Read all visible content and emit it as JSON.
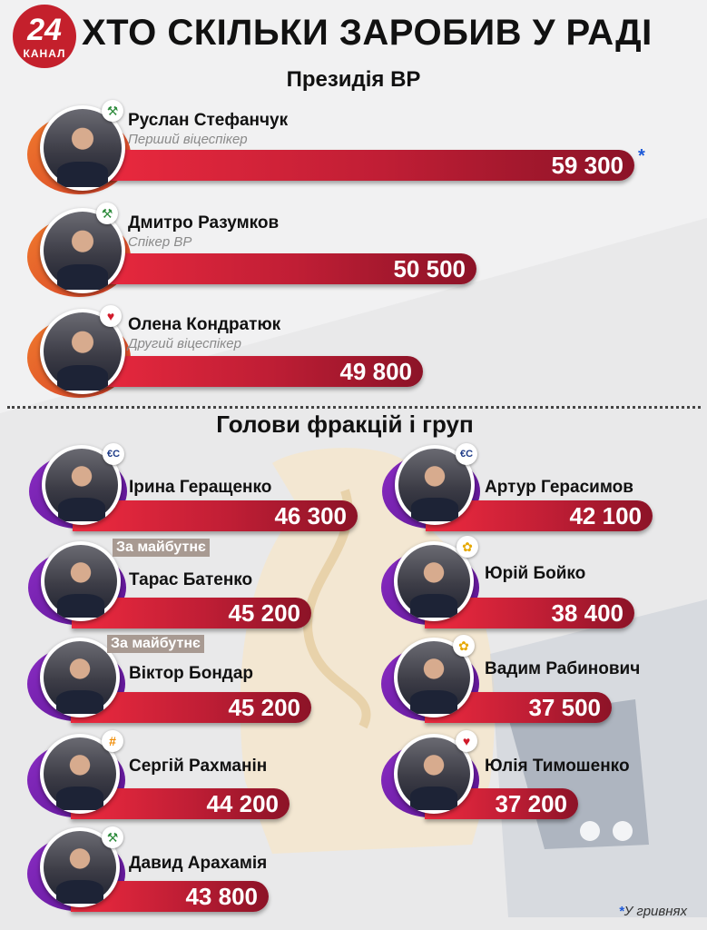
{
  "header": {
    "title": "ХТО СКІЛЬКИ ЗАРОБИВ У РАДІ",
    "logo_number": "24",
    "logo_word": "КАНАЛ"
  },
  "sections": {
    "presidium": "Президія ВР",
    "factions": "Голови фракцій і груп"
  },
  "footnote": {
    "mark": "*",
    "text": "У гривнях"
  },
  "colors": {
    "bar_start": "#ee2a3f",
    "bar_end": "#8c1327",
    "decor_orange": "#e0512a",
    "decor_purple": "#6a1fa3",
    "footnote_blue": "#1e5ad8"
  },
  "chart_data": {
    "type": "bar",
    "unit": "У гривнях",
    "categories": [
      "Руслан Стефанчук",
      "Дмитро Разумков",
      "Олена Кондратюк",
      "Ірина Геращенко",
      "Артур Герасимов",
      "Тарас Батенко",
      "Юрій Бойко",
      "Віктор Бондар",
      "Вадим Рабинович",
      "Сергій Рахманін",
      "Юлія Тимошенко",
      "Давид Арахамія"
    ],
    "values": [
      59300,
      50500,
      49800,
      46300,
      42100,
      45200,
      38400,
      45200,
      37500,
      44200,
      37200,
      43800
    ],
    "value_labels": [
      "59 300",
      "50 500",
      "49 800",
      "46 300",
      "42 100",
      "45 200",
      "38 400",
      "45 200",
      "37 500",
      "44 200",
      "37 200",
      "43 800"
    ]
  },
  "people": [
    {
      "name": "Руслан Стефанчук",
      "role": "Перший віцеспікер",
      "value": "59 300",
      "asterisk": "*",
      "badge": "servant-of-the-people-icon",
      "badge_glyph": "⚒",
      "badge_color": "#2c8a3a",
      "tag": ""
    },
    {
      "name": "Дмитро Разумков",
      "role": "Спікер ВР",
      "value": "50 500",
      "asterisk": "",
      "badge": "servant-of-the-people-icon",
      "badge_glyph": "⚒",
      "badge_color": "#2c8a3a",
      "tag": ""
    },
    {
      "name": "Олена Кондратюк",
      "role": "Другий віцеспікер",
      "value": "49 800",
      "asterisk": "",
      "badge": "heart-icon",
      "badge_glyph": "♥",
      "badge_color": "#d11a2a",
      "tag": ""
    },
    {
      "name": "Ірина Геращенко",
      "role": "",
      "value": "46 300",
      "asterisk": "",
      "badge": "european-solidarity-icon",
      "badge_glyph": "€С",
      "badge_color": "#1f3c88",
      "tag": ""
    },
    {
      "name": "Артур Герасимов",
      "role": "",
      "value": "42 100",
      "asterisk": "",
      "badge": "european-solidarity-icon",
      "badge_glyph": "€С",
      "badge_color": "#1f3c88",
      "tag": ""
    },
    {
      "name": "Тарас Батенко",
      "role": "",
      "value": "45 200",
      "asterisk": "",
      "badge": "",
      "badge_glyph": "",
      "badge_color": "#000",
      "tag": "За майбутнє"
    },
    {
      "name": "Юрій Бойко",
      "role": "",
      "value": "38 400",
      "asterisk": "",
      "badge": "sunflower-icon",
      "badge_glyph": "✿",
      "badge_color": "#e6a800",
      "tag": ""
    },
    {
      "name": "Віктор Бондар",
      "role": "",
      "value": "45 200",
      "asterisk": "",
      "badge": "",
      "badge_glyph": "",
      "badge_color": "#000",
      "tag": "За майбутнє"
    },
    {
      "name": "Вадим Рабинович",
      "role": "",
      "value": "37 500",
      "asterisk": "",
      "badge": "sunflower-icon",
      "badge_glyph": "✿",
      "badge_color": "#e6a800",
      "tag": ""
    },
    {
      "name": "Сергій Рахманін",
      "role": "",
      "value": "44 200",
      "asterisk": "",
      "badge": "holos-icon",
      "badge_glyph": "#",
      "badge_color": "#f08a00",
      "tag": ""
    },
    {
      "name": "Юлія Тимошенко",
      "role": "",
      "value": "37 200",
      "asterisk": "",
      "badge": "heart-icon",
      "badge_glyph": "♥",
      "badge_color": "#d11a2a",
      "tag": ""
    },
    {
      "name": "Давид Арахамія",
      "role": "",
      "value": "43 800",
      "asterisk": "",
      "badge": "servant-of-the-people-icon",
      "badge_glyph": "⚒",
      "badge_color": "#2c8a3a",
      "tag": ""
    }
  ]
}
